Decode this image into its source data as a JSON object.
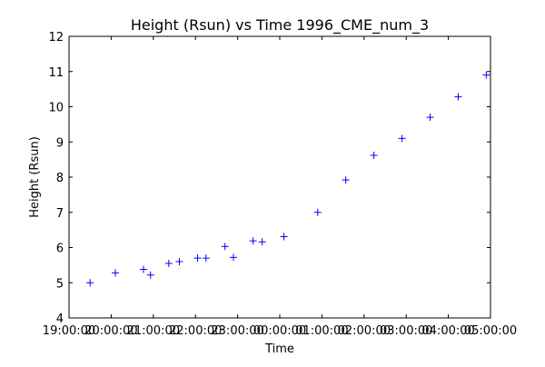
{
  "chart_data": {
    "type": "scatter",
    "title": "Height (Rsun) vs Time 1996_CME_num_3",
    "xlabel": "Time",
    "ylabel": "Height (Rsun)",
    "xlim": [
      "19:00:00",
      "05:00:00"
    ],
    "ylim": [
      4,
      12
    ],
    "x_ticks": [
      "19:00:00",
      "20:00:00",
      "21:00:00",
      "22:00:00",
      "23:00:00",
      "00:00:00",
      "01:00:00",
      "02:00:00",
      "03:00:00",
      "04:00:00",
      "05:00:00"
    ],
    "y_ticks": [
      "4",
      "5",
      "6",
      "7",
      "8",
      "9",
      "10",
      "11",
      "12"
    ],
    "grid": false,
    "marker": "+",
    "marker_color": "#0000ff",
    "series": [
      {
        "x": [
          "19:30",
          "20:06",
          "20:46",
          "20:56",
          "21:22",
          "21:37",
          "22:03",
          "22:15",
          "22:42",
          "22:54",
          "23:22",
          "23:35",
          "00:06",
          "00:54",
          "01:34",
          "02:14",
          "02:54",
          "03:34",
          "04:14",
          "04:54"
        ],
        "y": [
          5.0,
          5.28,
          5.38,
          5.22,
          5.55,
          5.6,
          5.7,
          5.7,
          6.03,
          5.72,
          6.19,
          6.16,
          6.31,
          7.0,
          7.92,
          8.62,
          9.1,
          9.7,
          10.28,
          10.9
        ]
      }
    ]
  }
}
